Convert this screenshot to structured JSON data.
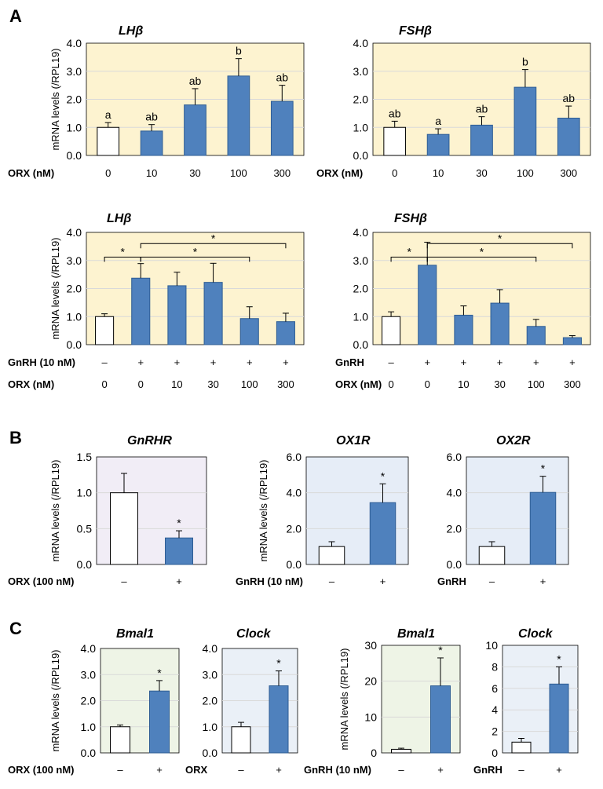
{
  "figure": {
    "y_axis_label": "mRNA levels (/RPL19)",
    "colors": {
      "bar_fill": "#4f81bd",
      "bar_stroke": "#2e5d94",
      "control_fill": "#ffffff",
      "bg_yellow": "#fdf3d0",
      "bg_purple": "#f1edf6",
      "bg_blue": "#e6edf7",
      "bg_green": "#eef4e6",
      "bg_lightblue": "#eaf0f7"
    }
  },
  "chart_data": [
    {
      "id": "A1",
      "panel_letter": "A",
      "type": "bar",
      "title": "LHβ",
      "ylim": [
        0,
        4
      ],
      "yticks": [
        "0.0",
        "1.0",
        "2.0",
        "3.0",
        "4.0"
      ],
      "show_ylabel": true,
      "row_labels": [
        {
          "label": "ORX (nM)",
          "values": [
            "0",
            "10",
            "30",
            "100",
            "300"
          ]
        }
      ],
      "values": [
        1.0,
        0.87,
        1.8,
        2.83,
        1.93
      ],
      "errors": [
        0.17,
        0.23,
        0.58,
        0.62,
        0.57
      ],
      "annotations": [
        "a",
        "ab",
        "ab",
        "b",
        "ab"
      ],
      "brackets": []
    },
    {
      "id": "A2",
      "type": "bar",
      "title": "FSHβ",
      "ylim": [
        0,
        4
      ],
      "yticks": [
        "0.0",
        "1.0",
        "2.0",
        "3.0",
        "4.0"
      ],
      "show_ylabel": false,
      "row_labels": [
        {
          "label": "ORX (nM)",
          "values": [
            "0",
            "10",
            "30",
            "100",
            "300"
          ]
        }
      ],
      "values": [
        1.0,
        0.75,
        1.08,
        2.43,
        1.33
      ],
      "errors": [
        0.22,
        0.2,
        0.3,
        0.63,
        0.43
      ],
      "annotations": [
        "ab",
        "a",
        "ab",
        "b",
        "ab"
      ],
      "brackets": []
    },
    {
      "id": "A3",
      "type": "bar",
      "title": "LHβ",
      "ylim": [
        0,
        4
      ],
      "yticks": [
        "0.0",
        "1.0",
        "2.0",
        "3.0",
        "4.0"
      ],
      "show_ylabel": true,
      "row_labels": [
        {
          "label": "GnRH (10 nM)",
          "values": [
            "–",
            "+",
            "+",
            "+",
            "+",
            "+"
          ]
        },
        {
          "label": "ORX (nM)",
          "values": [
            "0",
            "0",
            "10",
            "30",
            "100",
            "300"
          ]
        }
      ],
      "values": [
        1.0,
        2.37,
        2.1,
        2.22,
        0.93,
        0.82
      ],
      "errors": [
        0.1,
        0.52,
        0.48,
        0.68,
        0.42,
        0.3
      ],
      "annotations": [
        "",
        "",
        "",
        "",
        "",
        ""
      ],
      "brackets": [
        {
          "from": 0,
          "to": 1,
          "level": 3.12,
          "label": "*"
        },
        {
          "from": 1,
          "to": 4,
          "level": 3.12,
          "label": "*"
        },
        {
          "from": 1,
          "to": 5,
          "level": 3.6,
          "label": "*"
        }
      ]
    },
    {
      "id": "A4",
      "type": "bar",
      "title": "FSHβ",
      "ylim": [
        0,
        4
      ],
      "yticks": [
        "0.0",
        "1.0",
        "2.0",
        "3.0",
        "4.0"
      ],
      "show_ylabel": false,
      "row_labels": [
        {
          "label": "GnRH",
          "values": [
            "–",
            "+",
            "+",
            "+",
            "+",
            "+"
          ]
        },
        {
          "label": "ORX (nM)",
          "values": [
            "0",
            "0",
            "10",
            "30",
            "100",
            "300"
          ]
        }
      ],
      "values": [
        1.0,
        2.83,
        1.05,
        1.48,
        0.65,
        0.25
      ],
      "errors": [
        0.17,
        0.82,
        0.33,
        0.48,
        0.25,
        0.07
      ],
      "annotations": [
        "",
        "",
        "",
        "",
        "",
        ""
      ],
      "brackets": [
        {
          "from": 0,
          "to": 1,
          "level": 3.12,
          "label": "*"
        },
        {
          "from": 1,
          "to": 4,
          "level": 3.12,
          "label": "*"
        },
        {
          "from": 1,
          "to": 5,
          "level": 3.6,
          "label": "*"
        }
      ]
    },
    {
      "id": "B1",
      "panel_letter": "B",
      "type": "bar",
      "title": "GnRHR",
      "ylim": [
        0,
        1.5
      ],
      "yticks": [
        "0.0",
        "0.5",
        "1.0",
        "1.5"
      ],
      "show_ylabel": true,
      "row_labels": [
        {
          "label": "ORX (100 nM)",
          "values": [
            "–",
            "+"
          ]
        }
      ],
      "values": [
        1.0,
        0.37
      ],
      "errors": [
        0.27,
        0.1
      ],
      "annotations": [
        "",
        "*"
      ],
      "brackets": []
    },
    {
      "id": "B2",
      "type": "bar",
      "title": "OX1R",
      "ylim": [
        0,
        6
      ],
      "yticks": [
        "0.0",
        "2.0",
        "4.0",
        "6.0"
      ],
      "show_ylabel": true,
      "row_labels": [
        {
          "label": "GnRH (10 nM)",
          "values": [
            "–",
            "+"
          ]
        }
      ],
      "values": [
        1.0,
        3.45
      ],
      "errors": [
        0.27,
        1.05
      ],
      "annotations": [
        "",
        "*"
      ],
      "brackets": []
    },
    {
      "id": "B3",
      "type": "bar",
      "title": "OX2R",
      "ylim": [
        0,
        6
      ],
      "yticks": [
        "0.0",
        "2.0",
        "4.0",
        "6.0"
      ],
      "show_ylabel": false,
      "row_labels": [
        {
          "label": "GnRH",
          "values": [
            "–",
            "+"
          ]
        }
      ],
      "values": [
        1.0,
        4.02
      ],
      "errors": [
        0.27,
        0.9
      ],
      "annotations": [
        "",
        "*"
      ],
      "brackets": []
    },
    {
      "id": "C1",
      "panel_letter": "C",
      "type": "bar",
      "title": "Bmal1",
      "ylim": [
        0,
        4
      ],
      "yticks": [
        "0.0",
        "1.0",
        "2.0",
        "3.0",
        "4.0"
      ],
      "show_ylabel": true,
      "row_labels": [
        {
          "label": "ORX (100 nM)",
          "values": [
            "–",
            "+"
          ]
        }
      ],
      "values": [
        1.0,
        2.37
      ],
      "errors": [
        0.07,
        0.4
      ],
      "annotations": [
        "",
        "*"
      ],
      "brackets": []
    },
    {
      "id": "C2",
      "type": "bar",
      "title": "Clock",
      "ylim": [
        0,
        4
      ],
      "yticks": [
        "0.0",
        "1.0",
        "2.0",
        "3.0",
        "4.0"
      ],
      "show_ylabel": false,
      "row_labels": [
        {
          "label": "ORX",
          "values": [
            "–",
            "+"
          ]
        }
      ],
      "values": [
        1.0,
        2.57
      ],
      "errors": [
        0.17,
        0.57
      ],
      "annotations": [
        "",
        "*"
      ],
      "brackets": []
    },
    {
      "id": "C3",
      "type": "bar",
      "title": "Bmal1",
      "ylim": [
        0,
        30
      ],
      "yticks": [
        "0",
        "10",
        "20",
        "30"
      ],
      "show_ylabel": true,
      "row_labels": [
        {
          "label": "GnRH (10 nM)",
          "values": [
            "–",
            "+"
          ]
        }
      ],
      "values": [
        1.0,
        18.7
      ],
      "errors": [
        0.3,
        7.8
      ],
      "annotations": [
        "",
        "*"
      ],
      "brackets": []
    },
    {
      "id": "C4",
      "type": "bar",
      "title": "Clock",
      "ylim": [
        0,
        10
      ],
      "yticks": [
        "0",
        "2",
        "4",
        "6",
        "8",
        "10"
      ],
      "show_ylabel": false,
      "row_labels": [
        {
          "label": "GnRH",
          "values": [
            "–",
            "+"
          ]
        }
      ],
      "values": [
        1.0,
        6.4
      ],
      "errors": [
        0.35,
        1.6
      ],
      "annotations": [
        "",
        "*"
      ],
      "brackets": []
    }
  ]
}
